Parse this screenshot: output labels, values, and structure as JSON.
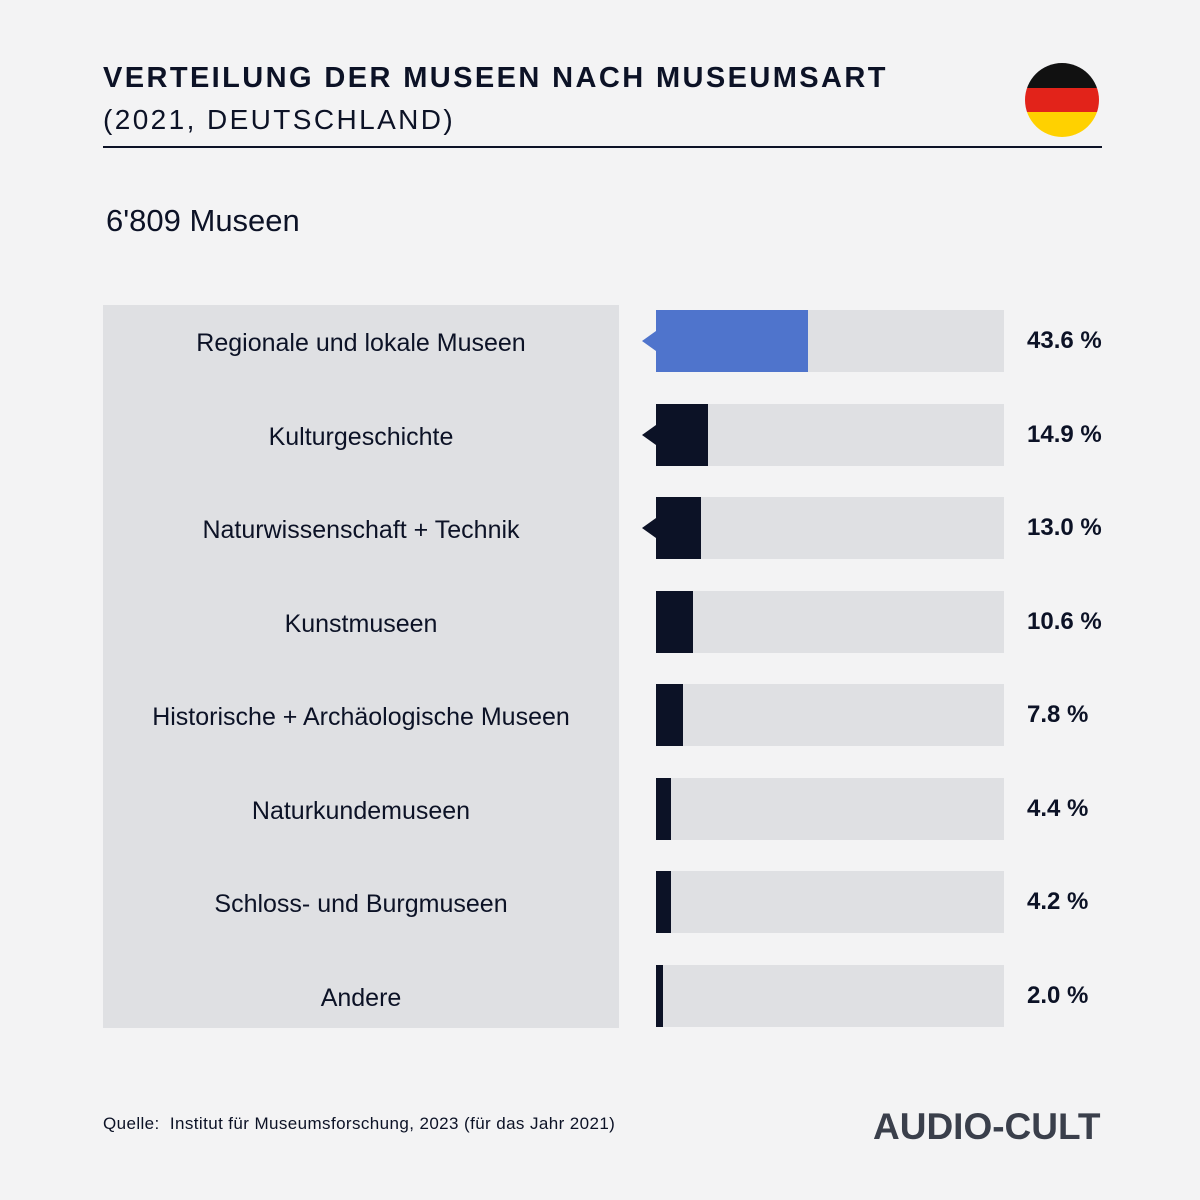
{
  "header": {
    "title": "VERTEILUNG DER MUSEEN NACH MUSEUMSART",
    "subtitle": "(2021, DEUTSCHLAND)",
    "flag_icon": "germany-flag-icon",
    "flag_colors": [
      "#111111",
      "#e2231a",
      "#ffd100"
    ]
  },
  "summary": {
    "total": "6'809 Museen"
  },
  "colors": {
    "highlight": "#4f74cc",
    "bar": "#0c1226",
    "track": "#dfe0e3"
  },
  "chart_data": {
    "type": "bar",
    "orientation": "horizontal",
    "categories": [
      "Regionale und lokale Museen",
      "Kulturgeschichte",
      "Naturwissenschaft + Technik",
      "Kunstmuseen",
      "Historische + Archäologische Museen",
      "Naturkundemuseen",
      "Schloss- und Burgmuseen",
      "Andere"
    ],
    "values": [
      43.6,
      14.9,
      13.0,
      10.6,
      7.8,
      4.4,
      4.2,
      2.0
    ],
    "value_labels": [
      "43.6 %",
      "14.9 %",
      "13.0 %",
      "10.6 %",
      "7.8 %",
      "4.4 %",
      "4.2 %",
      "2.0 %"
    ],
    "xlim": [
      0,
      100
    ],
    "highlighted_index": 0,
    "pointer_indices": [
      0,
      1,
      2
    ],
    "grid": false,
    "legend": "none"
  },
  "footer": {
    "source": "Quelle:  Institut für Museumsforschung, 2023 (für das Jahr 2021)",
    "brand": "AUDIO-CULT"
  }
}
